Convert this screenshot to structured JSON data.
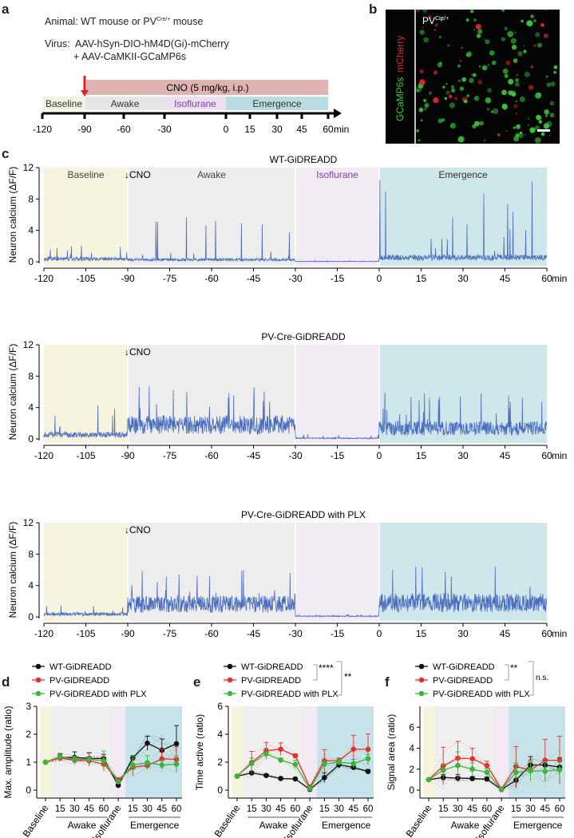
{
  "panel_labels": {
    "a": "a",
    "b": "b",
    "c": "c",
    "d": "d",
    "e": "e",
    "f": "f"
  },
  "panel_a": {
    "animal": "Animal: WT mouse or PV",
    "animal_sup": "Cre/+",
    "animal_end": " mouse",
    "virus_line1": "Virus:  AAV-hSyn-DIO-hM4D(Gi)-mCherry",
    "virus_line2": "+ AAV-CaMKII-GCaMP6s",
    "cno_label": "CNO (5 mg/kg, i.p.)",
    "epochs": [
      "Baseline",
      "Awake",
      "Isoflurane",
      "Emergence"
    ],
    "ticks": [
      "-120",
      "-90",
      "-60",
      "-30",
      "0",
      "15",
      "30",
      "45",
      "60"
    ],
    "unit": "min",
    "colors": {
      "cno": "#e0b3b3",
      "baseline": "#f4f2e0",
      "awake": "#e6e6e6",
      "isoflurane": "#ecdff0",
      "emergence": "#b9dce2",
      "arrow": "#e02020",
      "iso_text": "#8040a0"
    }
  },
  "panel_b": {
    "label": "PV",
    "label_sup": "Cre/+",
    "channel1": "GCaMP6s",
    "channel2": "mCherry",
    "green": "#3ccb3c",
    "red": "#e03030"
  },
  "chart_data": [
    {
      "type": "line",
      "panel": "c",
      "title": "WT-GiDREADD",
      "ylabel": "Neuron calcium (ΔF/F)",
      "xlabel": "min",
      "xlim": [
        -120,
        60
      ],
      "ylim": [
        0,
        12
      ],
      "xticks": [
        "-120",
        "-105",
        "-90",
        "-75",
        "-60",
        "-45",
        "-30",
        "-15",
        "0",
        "15",
        "30",
        "45",
        "60"
      ],
      "yticks": [
        "0",
        "4",
        "8",
        "12"
      ],
      "annotations": {
        "baseline": "Baseline",
        "cno": "↓CNO",
        "awake": "Awake",
        "isoflurane": "Isoflurane",
        "emergence": "Emergence"
      },
      "epoch_levels": {
        "baseline": {
          "mean": 0.4,
          "peak": 2.2
        },
        "awake": {
          "mean": 0.3,
          "peak": 5.8
        },
        "isoflurane": {
          "mean": 0.05,
          "peak": 0.2
        },
        "emergence": {
          "mean": 0.6,
          "peak": 10.5
        }
      },
      "color": "#4a6cc0"
    },
    {
      "type": "line",
      "panel": "c",
      "title": "PV-Cre-GiDREADD",
      "ylabel": "Neuron calcium (ΔF/F)",
      "xlabel": "min",
      "xlim": [
        -120,
        60
      ],
      "ylim": [
        0,
        12
      ],
      "xticks": [
        "-120",
        "-105",
        "-90",
        "-75",
        "-60",
        "-45",
        "-30",
        "-15",
        "0",
        "15",
        "30",
        "45",
        "60"
      ],
      "yticks": [
        "0",
        "4",
        "8",
        "12"
      ],
      "annotations": {
        "cno": "↓CNO"
      },
      "epoch_levels": {
        "baseline": {
          "mean": 0.6,
          "peak": 5.0
        },
        "awake": {
          "mean": 2.0,
          "peak": 7.0
        },
        "isoflurane": {
          "mean": 0.1,
          "peak": 0.6
        },
        "emergence": {
          "mean": 1.5,
          "peak": 6.2
        }
      },
      "color": "#4a6cc0"
    },
    {
      "type": "line",
      "panel": "c",
      "title": "PV-Cre-GiDREADD with PLX",
      "ylabel": "Neuron calcium (ΔF/F)",
      "xlabel": "min",
      "xlim": [
        -120,
        60
      ],
      "ylim": [
        0,
        12
      ],
      "xticks": [
        "-120",
        "-105",
        "-90",
        "-75",
        "-60",
        "-45",
        "-30",
        "-15",
        "0",
        "15",
        "30",
        "45",
        "60"
      ],
      "yticks": [
        "0",
        "4",
        "8",
        "12"
      ],
      "annotations": {
        "cno": "↓CNO"
      },
      "epoch_levels": {
        "baseline": {
          "mean": 0.4,
          "peak": 1.5
        },
        "awake": {
          "mean": 1.8,
          "peak": 6.3
        },
        "isoflurane": {
          "mean": 0.1,
          "peak": 0.3
        },
        "emergence": {
          "mean": 2.0,
          "peak": 7.0
        }
      },
      "color": "#4a6cc0"
    },
    {
      "type": "line",
      "panel": "d",
      "ylabel": "Max. amplitude (ratio)",
      "ylim": [
        0,
        3
      ],
      "yticks": [
        "0",
        "1",
        "2",
        "3"
      ],
      "categories": [
        "Baseline",
        "15",
        "30",
        "45",
        "60",
        "Isoflurane",
        "15",
        "30",
        "45",
        "60"
      ],
      "groups": [
        "Awake",
        "Emergence"
      ],
      "series": [
        {
          "name": "WT-GiDREADD",
          "color": "#111111",
          "values": [
            1,
            1.17,
            1.17,
            1.13,
            1.13,
            0.17,
            1.15,
            1.68,
            1.43,
            1.66
          ],
          "err": [
            0.03,
            0.12,
            0.2,
            0.2,
            0.15,
            0.05,
            0.08,
            0.25,
            0.4,
            0.65
          ]
        },
        {
          "name": "PV-GiDREADD",
          "color": "#e53030",
          "values": [
            1,
            1.15,
            1.07,
            1.05,
            0.93,
            0.37,
            0.82,
            0.88,
            1.12,
            1.1
          ],
          "err": [
            0.03,
            0.1,
            0.12,
            0.15,
            0.25,
            0.05,
            0.3,
            0.1,
            0.35,
            0.45
          ]
        },
        {
          "name": "PV-GiDREADD with PLX",
          "color": "#3cb43c",
          "values": [
            1,
            1.2,
            1.1,
            1.1,
            1.05,
            0.3,
            0.9,
            0.98,
            0.9,
            0.93
          ],
          "err": [
            0.03,
            0.12,
            0.12,
            0.25,
            0.35,
            0.05,
            0.3,
            0.25,
            0.15,
            0.3
          ]
        }
      ],
      "significance": []
    },
    {
      "type": "line",
      "panel": "e",
      "ylabel": "Time active (ratio)",
      "ylim": [
        0,
        6
      ],
      "yticks": [
        "0",
        "2",
        "4",
        "6"
      ],
      "categories": [
        "Baseline",
        "15",
        "30",
        "45",
        "60",
        "Isoflurane",
        "15",
        "30",
        "45",
        "60"
      ],
      "groups": [
        "Awake",
        "Emergence"
      ],
      "series": [
        {
          "name": "WT-GiDREADD",
          "color": "#111111",
          "values": [
            1,
            1.23,
            1.05,
            0.83,
            0.8,
            0.05,
            0.9,
            1.82,
            1.63,
            1.33
          ],
          "err": [
            0.05,
            0.1,
            0.1,
            0.1,
            0.1,
            0.05,
            0.35,
            0.25,
            0.2,
            0.15
          ]
        },
        {
          "name": "PV-GiDREADD",
          "color": "#e53030",
          "values": [
            1,
            1.97,
            2.82,
            2.93,
            2.45,
            0.22,
            2.1,
            2.1,
            2.93,
            2.92
          ],
          "err": [
            0.05,
            0.8,
            0.6,
            0.45,
            0.15,
            0.05,
            0.8,
            0.2,
            1.0,
            1.1
          ]
        },
        {
          "name": "PV-GiDREADD with PLX",
          "color": "#3cb43c",
          "values": [
            1,
            1.9,
            2.6,
            2.15,
            1.83,
            0.1,
            1.87,
            2.0,
            1.9,
            2.25
          ],
          "err": [
            0.05,
            0.4,
            0.4,
            0.15,
            0.3,
            0.05,
            0.3,
            0.2,
            0.3,
            0.3
          ]
        }
      ],
      "significance": [
        "****",
        "**"
      ]
    },
    {
      "type": "line",
      "panel": "f",
      "ylabel": "Signal area (ratio)",
      "ylim": [
        0,
        8
      ],
      "yticks": [
        "0",
        "2",
        "4",
        "6"
      ],
      "categories": [
        "Baseline",
        "15",
        "30",
        "45",
        "60",
        "Isoflurane",
        "15",
        "30",
        "45",
        "60"
      ],
      "groups": [
        "Awake",
        "Emergence"
      ],
      "series": [
        {
          "name": "WT-GiDREADD",
          "color": "#111111",
          "values": [
            1,
            1.2,
            1.15,
            1.1,
            1.05,
            0.05,
            0.95,
            2.4,
            2.4,
            2.2
          ],
          "err": [
            0.05,
            0.3,
            0.35,
            0.2,
            0.2,
            0.05,
            0.7,
            0.8,
            0.5,
            0.9
          ]
        },
        {
          "name": "PV-GiDREADD",
          "color": "#e53030",
          "values": [
            1,
            2.3,
            3.05,
            3.0,
            2.35,
            0.1,
            2.25,
            1.9,
            2.85,
            2.85
          ],
          "err": [
            0.05,
            1.8,
            1.6,
            1.0,
            0.4,
            0.05,
            1.9,
            1.0,
            2.0,
            2.3
          ]
        },
        {
          "name": "PV-GiDREADD with PLX",
          "color": "#3cb43c",
          "values": [
            1,
            1.9,
            2.35,
            2.0,
            1.7,
            0.05,
            1.7,
            1.85,
            1.8,
            1.95
          ],
          "err": [
            0.05,
            0.6,
            1.3,
            0.6,
            0.4,
            0.05,
            0.9,
            0.9,
            0.9,
            0.8
          ]
        }
      ],
      "significance": [
        "**",
        "n.s."
      ]
    }
  ]
}
